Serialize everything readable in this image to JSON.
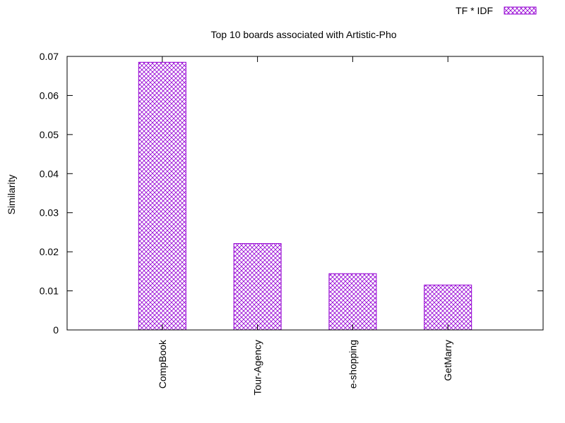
{
  "chart_data": {
    "type": "bar",
    "title": "Top 10 boards associated with Artistic-Pho",
    "xlabel": "",
    "ylabel": "Similarity",
    "ylim": [
      0,
      0.07
    ],
    "yticks": [
      "0",
      "0.01",
      "0.02",
      "0.03",
      "0.04",
      "0.05",
      "0.06",
      "0.07"
    ],
    "categories": [
      "CompBook",
      "Tour-Agency",
      "e-shopping",
      "GetMarry"
    ],
    "series": [
      {
        "name": "TF * IDF",
        "values": [
          0.0685,
          0.0221,
          0.0144,
          0.0115
        ]
      }
    ],
    "legend_position": "top-right",
    "grid": false,
    "bar_pattern": "crosshatch",
    "colors": {
      "bar": "#9400d3",
      "axis": "#000000",
      "background": "#ffffff"
    }
  }
}
